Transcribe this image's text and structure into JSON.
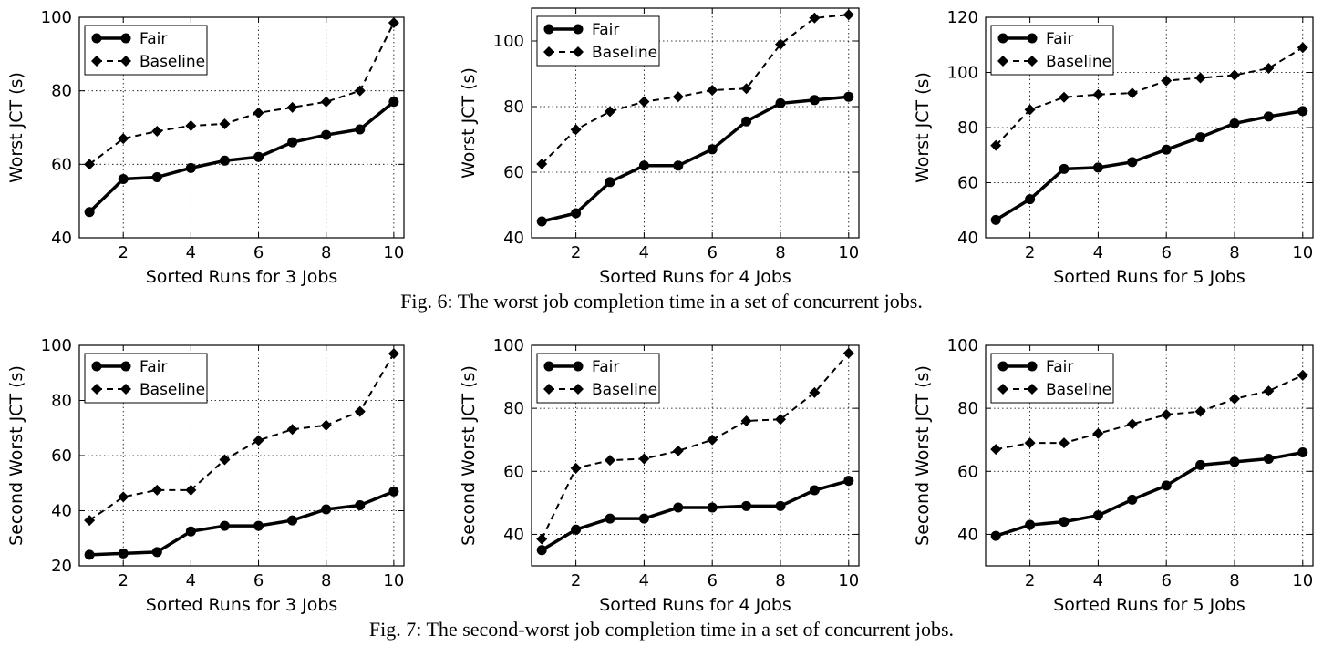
{
  "captions": {
    "fig6": "Fig. 6: The worst job completion time in a set of concurrent jobs.",
    "fig7": "Fig. 7: The second-worst job completion time in a set of concurrent jobs."
  },
  "legend_labels": [
    "Fair",
    "Baseline"
  ],
  "colors": {
    "series": "#000000",
    "grid": "#000000",
    "background": "#ffffff"
  },
  "chart_data": [
    {
      "type": "line",
      "xlabel": "Sorted Runs for 3 Jobs",
      "ylabel": "Worst JCT (s)",
      "x": [
        1,
        2,
        3,
        4,
        5,
        6,
        7,
        8,
        9,
        10
      ],
      "xlim": [
        0.7,
        10.3
      ],
      "ylim": [
        40,
        100
      ],
      "xticks": [
        2,
        4,
        6,
        8,
        10
      ],
      "yticks": [
        40,
        60,
        80,
        100
      ],
      "grid": true,
      "legend": "top-left",
      "series": [
        {
          "name": "Fair",
          "style": "solid-circle",
          "values": [
            47,
            56,
            56.5,
            59,
            61,
            62,
            66,
            68,
            69.5,
            77
          ]
        },
        {
          "name": "Baseline",
          "style": "dashed-diamond",
          "values": [
            60,
            67,
            69,
            70.5,
            71,
            74,
            75.5,
            77,
            80,
            98.5
          ]
        }
      ]
    },
    {
      "type": "line",
      "xlabel": "Sorted Runs for 4 Jobs",
      "ylabel": "Worst JCT (s)",
      "x": [
        1,
        2,
        3,
        4,
        5,
        6,
        7,
        8,
        9,
        10
      ],
      "xlim": [
        0.7,
        10.3
      ],
      "ylim": [
        40,
        110
      ],
      "xticks": [
        2,
        4,
        6,
        8,
        10
      ],
      "yticks": [
        40,
        60,
        80,
        100
      ],
      "grid": true,
      "legend": "top-left",
      "series": [
        {
          "name": "Fair",
          "style": "solid-circle",
          "values": [
            45,
            47.5,
            57,
            62,
            62,
            67,
            75.5,
            81,
            82,
            83
          ]
        },
        {
          "name": "Baseline",
          "style": "dashed-diamond",
          "values": [
            62.5,
            73,
            78.5,
            81.5,
            83,
            85,
            85.5,
            99,
            107,
            108
          ]
        }
      ]
    },
    {
      "type": "line",
      "xlabel": "Sorted Runs for 5 Jobs",
      "ylabel": "Worst JCT (s)",
      "x": [
        1,
        2,
        3,
        4,
        5,
        6,
        7,
        8,
        9,
        10
      ],
      "xlim": [
        0.7,
        10.3
      ],
      "ylim": [
        40,
        120
      ],
      "xticks": [
        2,
        4,
        6,
        8,
        10
      ],
      "yticks": [
        40,
        60,
        80,
        100,
        120
      ],
      "grid": true,
      "legend": "top-left",
      "series": [
        {
          "name": "Fair",
          "style": "solid-circle",
          "values": [
            46.5,
            54,
            65,
            65.5,
            67.5,
            72,
            76.5,
            81.5,
            84,
            86
          ]
        },
        {
          "name": "Baseline",
          "style": "dashed-diamond",
          "values": [
            73.5,
            86.5,
            91,
            92,
            92.5,
            97,
            98,
            99,
            101.5,
            109
          ]
        }
      ]
    },
    {
      "type": "line",
      "xlabel": "Sorted Runs for 3 Jobs",
      "ylabel": "Second Worst JCT (s)",
      "x": [
        1,
        2,
        3,
        4,
        5,
        6,
        7,
        8,
        9,
        10
      ],
      "xlim": [
        0.7,
        10.3
      ],
      "ylim": [
        20,
        100
      ],
      "xticks": [
        2,
        4,
        6,
        8,
        10
      ],
      "yticks": [
        20,
        40,
        60,
        80,
        100
      ],
      "grid": true,
      "legend": "top-left",
      "series": [
        {
          "name": "Fair",
          "style": "solid-circle",
          "values": [
            24,
            24.5,
            25,
            32.5,
            34.5,
            34.5,
            36.5,
            40.5,
            42,
            47
          ]
        },
        {
          "name": "Baseline",
          "style": "dashed-diamond",
          "values": [
            36.5,
            45,
            47.5,
            47.5,
            58.5,
            65.5,
            69.5,
            71,
            76,
            97
          ]
        }
      ]
    },
    {
      "type": "line",
      "xlabel": "Sorted Runs for 4 Jobs",
      "ylabel": "Second Worst JCT (s)",
      "x": [
        1,
        2,
        3,
        4,
        5,
        6,
        7,
        8,
        9,
        10
      ],
      "xlim": [
        0.7,
        10.3
      ],
      "ylim": [
        30,
        100
      ],
      "xticks": [
        2,
        4,
        6,
        8,
        10
      ],
      "yticks": [
        40,
        60,
        80,
        100
      ],
      "grid": true,
      "legend": "top-left",
      "series": [
        {
          "name": "Fair",
          "style": "solid-circle",
          "values": [
            35,
            41.5,
            45,
            45,
            48.5,
            48.5,
            49,
            49,
            54,
            57
          ]
        },
        {
          "name": "Baseline",
          "style": "dashed-diamond",
          "values": [
            38.5,
            61,
            63.5,
            64,
            66.5,
            70,
            76,
            76.5,
            85,
            97.5
          ]
        }
      ]
    },
    {
      "type": "line",
      "xlabel": "Sorted Runs for 5 Jobs",
      "ylabel": "Second Worst JCT (s)",
      "x": [
        1,
        2,
        3,
        4,
        5,
        6,
        7,
        8,
        9,
        10
      ],
      "xlim": [
        0.7,
        10.3
      ],
      "ylim": [
        30,
        100
      ],
      "xticks": [
        2,
        4,
        6,
        8,
        10
      ],
      "yticks": [
        40,
        60,
        80,
        100
      ],
      "grid": true,
      "legend": "top-left",
      "series": [
        {
          "name": "Fair",
          "style": "solid-circle",
          "values": [
            39.5,
            43,
            44,
            46,
            51,
            55.5,
            62,
            63,
            64,
            66
          ]
        },
        {
          "name": "Baseline",
          "style": "dashed-diamond",
          "values": [
            67,
            69,
            69,
            72,
            75,
            78,
            79,
            83,
            85.5,
            90.5
          ]
        }
      ]
    }
  ]
}
